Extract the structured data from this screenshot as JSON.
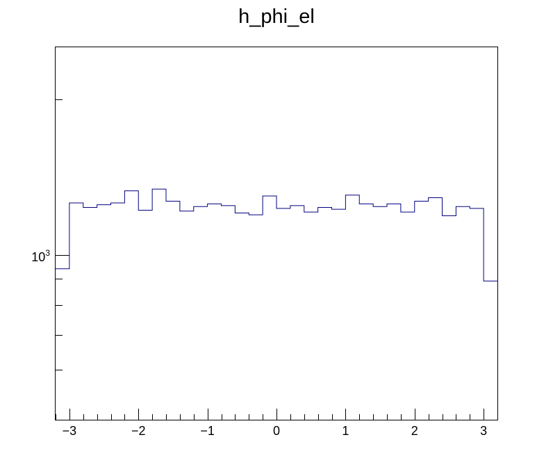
{
  "chart_data": {
    "type": "histogram",
    "title": "h_phi_el",
    "xlabel": "",
    "ylabel": "",
    "xlim": [
      -3.2,
      3.2
    ],
    "ylim": [
      480,
      2520
    ],
    "yscale": "log",
    "grid": false,
    "legend": "none",
    "line_color": "#00007f",
    "x_ticks": [
      {
        "value": -3,
        "label": "−3"
      },
      {
        "value": -2,
        "label": "−2"
      },
      {
        "value": -1,
        "label": "−1"
      },
      {
        "value": 0,
        "label": "0"
      },
      {
        "value": 1,
        "label": "1"
      },
      {
        "value": 2,
        "label": "2"
      },
      {
        "value": 3,
        "label": "3"
      }
    ],
    "y_major_ticks": [
      {
        "value": 1000,
        "label_base": "10",
        "label_exp": "3"
      }
    ],
    "y_minor_ticks": [
      600,
      700,
      800,
      900,
      2000
    ],
    "bin_edges": [
      -3.2,
      -3.0,
      -2.8,
      -2.6,
      -2.4,
      -2.2,
      -2.0,
      -1.8,
      -1.6,
      -1.4,
      -1.2,
      -1.0,
      -0.8,
      -0.6,
      -0.4,
      -0.2,
      0.0,
      0.2,
      0.4,
      0.6,
      0.8,
      1.0,
      1.2,
      1.4,
      1.6,
      1.8,
      2.0,
      2.2,
      2.4,
      2.6,
      2.8,
      3.0,
      3.2
    ],
    "counts": [
      940,
      1260,
      1235,
      1250,
      1260,
      1330,
      1220,
      1340,
      1270,
      1215,
      1240,
      1255,
      1245,
      1205,
      1195,
      1300,
      1230,
      1245,
      1210,
      1235,
      1225,
      1305,
      1255,
      1240,
      1255,
      1210,
      1270,
      1290,
      1190,
      1240,
      1230,
      890
    ]
  }
}
